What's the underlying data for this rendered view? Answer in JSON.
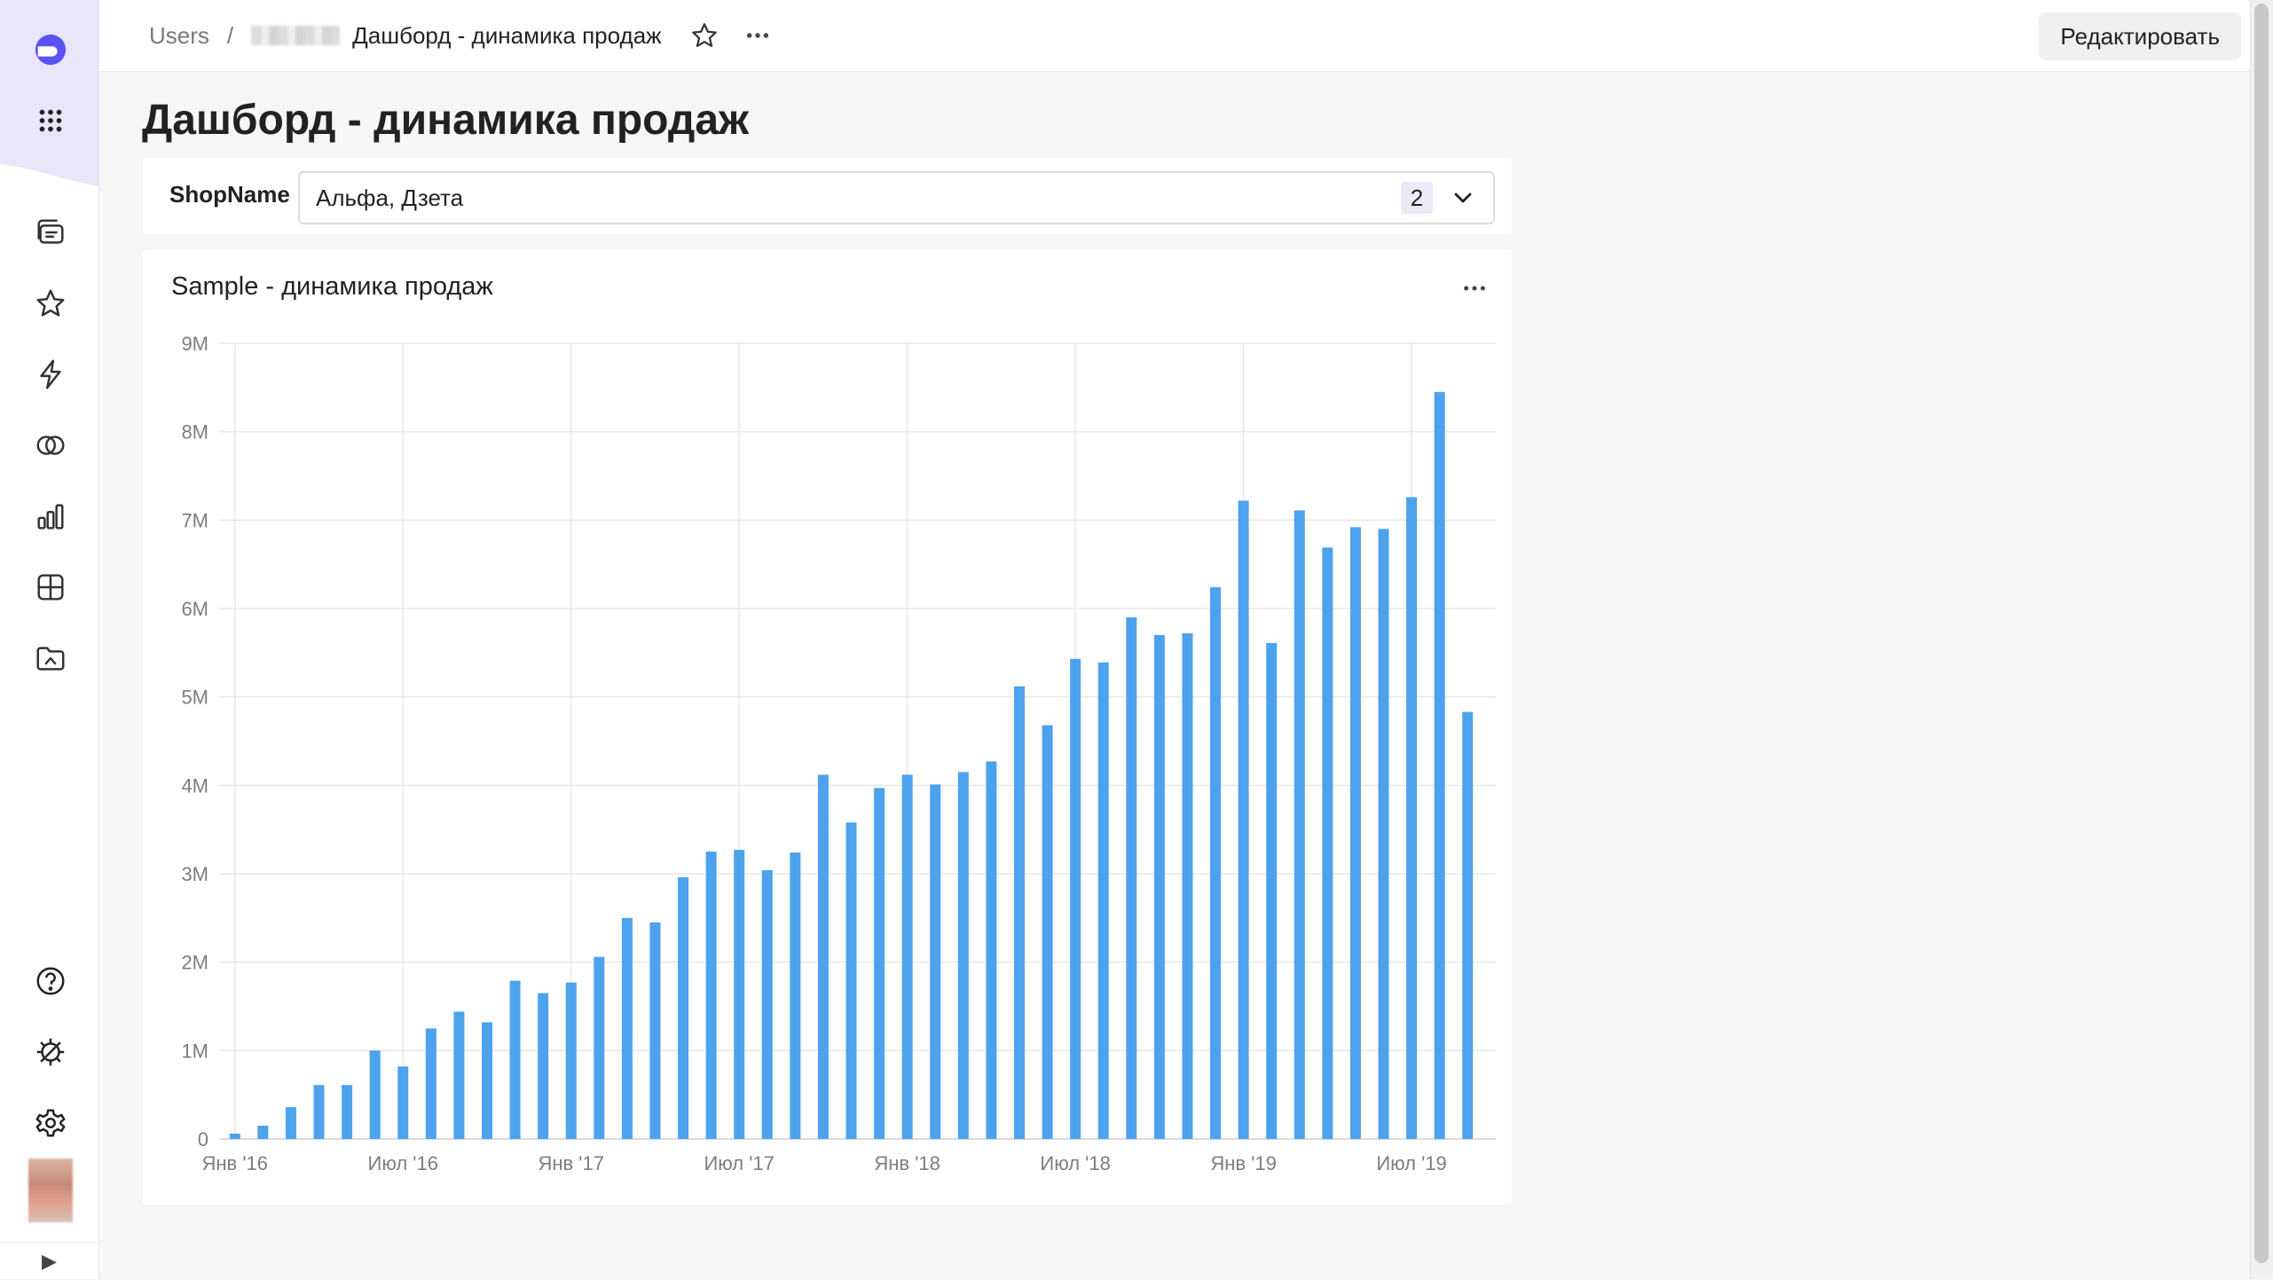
{
  "breadcrumb": {
    "root": "Users",
    "separator": "/",
    "current": "Дашборд - динамика продаж"
  },
  "header": {
    "edit_label": "Редактировать"
  },
  "page": {
    "title": "Дашборд - динамика продаж"
  },
  "selector": {
    "label": "ShopName",
    "value": "Альфа, Дзета",
    "count": "2"
  },
  "colors": {
    "bar": "#4da2ee",
    "accent": "#5b52f6",
    "sidebar_brand": "#e9e5fb"
  },
  "icons": {
    "sidebar": [
      "logo-icon",
      "apps-grid-icon",
      "collections-icon",
      "favorites-star-icon",
      "lightning-icon",
      "datasets-circles-icon",
      "charts-bar-icon",
      "dashboards-grid-icon",
      "folder-icon",
      "help-icon",
      "debug-gear-icon",
      "settings-gear-icon"
    ]
  },
  "chart_data": {
    "type": "bar",
    "title": "Sample - динамика продаж",
    "xlabel": "",
    "ylabel": "",
    "ylim": [
      0,
      9000000
    ],
    "y_ticks": [
      0,
      1000000,
      2000000,
      3000000,
      4000000,
      5000000,
      6000000,
      7000000,
      8000000,
      9000000
    ],
    "y_tick_labels": [
      "0",
      "1M",
      "2M",
      "3M",
      "4M",
      "5M",
      "6M",
      "7M",
      "8M",
      "9M"
    ],
    "x_tick_labels": [
      "Янв '16",
      "Июл '16",
      "Янв '17",
      "Июл '17",
      "Янв '18",
      "Июл '18",
      "Янв '19",
      "Июл '19"
    ],
    "x_tick_index": [
      0,
      6,
      12,
      18,
      24,
      30,
      36,
      42
    ],
    "categories": [
      "2016-01",
      "2016-02",
      "2016-03",
      "2016-04",
      "2016-05",
      "2016-06",
      "2016-07",
      "2016-08",
      "2016-09",
      "2016-10",
      "2016-11",
      "2016-12",
      "2017-01",
      "2017-02",
      "2017-03",
      "2017-04",
      "2017-05",
      "2017-06",
      "2017-07",
      "2017-08",
      "2017-09",
      "2017-10",
      "2017-11",
      "2017-12",
      "2018-01",
      "2018-02",
      "2018-03",
      "2018-04",
      "2018-05",
      "2018-06",
      "2018-07",
      "2018-08",
      "2018-09",
      "2018-10",
      "2018-11",
      "2018-12",
      "2019-01",
      "2019-02",
      "2019-03",
      "2019-04",
      "2019-05",
      "2019-06",
      "2019-07",
      "2019-08",
      "2019-09"
    ],
    "values": [
      60000,
      150000,
      360000,
      610000,
      610000,
      1000000,
      820000,
      1250000,
      1440000,
      1320000,
      1790000,
      1650000,
      1770000,
      2060000,
      2500000,
      2450000,
      2960000,
      3250000,
      3270000,
      3040000,
      3240000,
      4120000,
      3580000,
      3970000,
      4120000,
      4010000,
      4150000,
      4270000,
      5120000,
      4680000,
      5430000,
      5390000,
      5900000,
      5700000,
      5720000,
      6240000,
      7220000,
      5610000,
      7110000,
      6690000,
      6920000,
      6900000,
      7260000,
      8450000,
      4830000
    ],
    "grid": true,
    "legend": "none"
  }
}
